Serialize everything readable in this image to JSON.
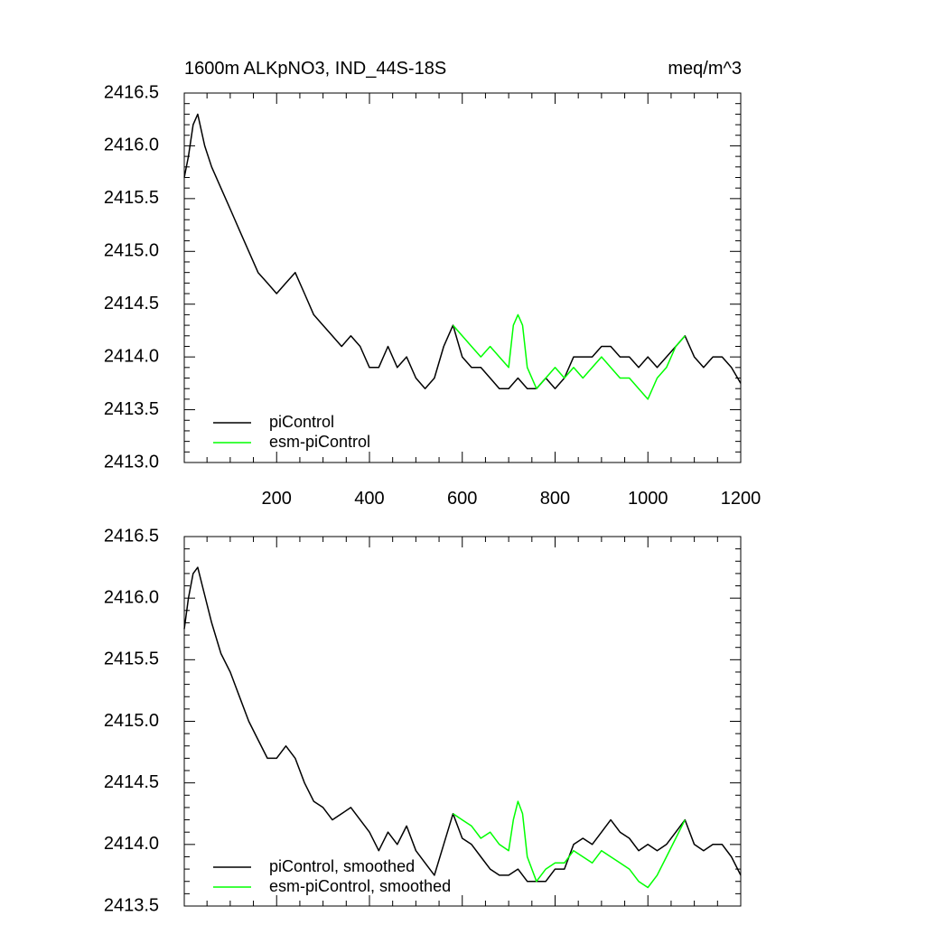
{
  "chart_data": [
    {
      "type": "line",
      "title": "1600m ALKpNO3, IND_44S-18S",
      "units": "meq/m^3",
      "xlim": [
        1,
        1200
      ],
      "ylim": [
        2413.0,
        2416.5
      ],
      "x_ticks": [
        200,
        400,
        600,
        800,
        1000,
        1200
      ],
      "x_tick_labels": [
        "200",
        "400",
        "600",
        "800",
        "1000",
        "1200"
      ],
      "y_ticks": [
        2413.0,
        2413.5,
        2414.0,
        2414.5,
        2415.0,
        2415.5,
        2416.0,
        2416.5
      ],
      "y_tick_labels": [
        "2413.0",
        "2413.5",
        "2414.0",
        "2414.5",
        "2415.0",
        "2415.5",
        "2416.0",
        "2416.5"
      ],
      "legend": "bottom-left",
      "series": [
        {
          "name": "piControl",
          "color": "#000000",
          "x": [
            1,
            10,
            20,
            30,
            45,
            60,
            80,
            100,
            120,
            140,
            160,
            180,
            200,
            220,
            240,
            260,
            280,
            300,
            320,
            340,
            360,
            380,
            400,
            420,
            440,
            460,
            480,
            500,
            520,
            540,
            560,
            580,
            600,
            620,
            640,
            660,
            680,
            700,
            720,
            740,
            760,
            780,
            800,
            820,
            840,
            860,
            880,
            900,
            920,
            940,
            960,
            980,
            1000,
            1020,
            1040,
            1060,
            1080,
            1100,
            1120,
            1140,
            1160,
            1180,
            1200
          ],
          "y": [
            2415.7,
            2415.9,
            2416.2,
            2416.3,
            2416.0,
            2415.8,
            2415.6,
            2415.4,
            2415.2,
            2415.0,
            2414.8,
            2414.7,
            2414.6,
            2414.7,
            2414.8,
            2414.6,
            2414.4,
            2414.3,
            2414.2,
            2414.1,
            2414.2,
            2414.1,
            2413.9,
            2413.9,
            2414.1,
            2413.9,
            2414.0,
            2413.8,
            2413.7,
            2413.8,
            2414.1,
            2414.3,
            2414.0,
            2413.9,
            2413.9,
            2413.8,
            2413.7,
            2413.7,
            2413.8,
            2413.7,
            2413.7,
            2413.8,
            2413.7,
            2413.8,
            2414.0,
            2414.0,
            2414.0,
            2414.1,
            2414.1,
            2414.0,
            2414.0,
            2413.9,
            2414.0,
            2413.9,
            2414.0,
            2414.1,
            2414.2,
            2414.0,
            2413.9,
            2414.0,
            2414.0,
            2413.9,
            2413.75
          ]
        },
        {
          "name": "esm-piControl",
          "color": "#00ff00",
          "x": [
            580,
            600,
            620,
            640,
            660,
            680,
            700,
            710,
            720,
            730,
            740,
            760,
            780,
            800,
            820,
            840,
            860,
            880,
            900,
            920,
            940,
            960,
            980,
            1000,
            1020,
            1040,
            1060,
            1080
          ],
          "y": [
            2414.3,
            2414.2,
            2414.1,
            2414.0,
            2414.1,
            2414.0,
            2413.9,
            2414.3,
            2414.4,
            2414.3,
            2413.9,
            2413.7,
            2413.8,
            2413.9,
            2413.8,
            2413.9,
            2413.8,
            2413.9,
            2414.0,
            2413.9,
            2413.8,
            2413.8,
            2413.7,
            2413.6,
            2413.8,
            2413.9,
            2414.1,
            2414.2
          ]
        }
      ]
    },
    {
      "type": "line",
      "xlim": [
        1,
        1200
      ],
      "ylim": [
        2413.5,
        2416.5
      ],
      "x_ticks": [
        200,
        400,
        600,
        800,
        1000,
        1200
      ],
      "y_ticks": [
        2413.5,
        2414.0,
        2414.5,
        2415.0,
        2415.5,
        2416.0,
        2416.5
      ],
      "y_tick_labels": [
        "2413.5",
        "2414.0",
        "2414.5",
        "2415.0",
        "2415.5",
        "2416.0",
        "2416.5"
      ],
      "legend": "bottom-left",
      "series": [
        {
          "name": "piControl, smoothed",
          "color": "#000000",
          "x": [
            1,
            10,
            20,
            30,
            40,
            60,
            80,
            100,
            120,
            140,
            160,
            180,
            200,
            220,
            240,
            260,
            280,
            300,
            320,
            340,
            360,
            380,
            400,
            420,
            440,
            460,
            480,
            500,
            520,
            540,
            560,
            580,
            600,
            620,
            640,
            660,
            680,
            700,
            720,
            740,
            760,
            780,
            800,
            820,
            840,
            860,
            880,
            900,
            920,
            940,
            960,
            980,
            1000,
            1020,
            1040,
            1060,
            1080,
            1100,
            1120,
            1140,
            1160,
            1180,
            1200
          ],
          "y": [
            2415.75,
            2416.0,
            2416.2,
            2416.25,
            2416.1,
            2415.8,
            2415.55,
            2415.4,
            2415.2,
            2415.0,
            2414.85,
            2414.7,
            2414.7,
            2414.8,
            2414.7,
            2414.5,
            2414.35,
            2414.3,
            2414.2,
            2414.25,
            2414.3,
            2414.2,
            2414.1,
            2413.95,
            2414.1,
            2414.0,
            2414.15,
            2413.95,
            2413.85,
            2413.75,
            2414.0,
            2414.25,
            2414.05,
            2414.0,
            2413.9,
            2413.8,
            2413.75,
            2413.75,
            2413.8,
            2413.7,
            2413.7,
            2413.7,
            2413.8,
            2413.8,
            2414.0,
            2414.05,
            2414.0,
            2414.1,
            2414.2,
            2414.1,
            2414.05,
            2413.95,
            2414.0,
            2413.95,
            2414.0,
            2414.1,
            2414.2,
            2414.0,
            2413.95,
            2414.0,
            2414.0,
            2413.9,
            2413.75
          ]
        },
        {
          "name": "esm-piControl, smoothed",
          "color": "#00ff00",
          "x": [
            580,
            600,
            620,
            640,
            660,
            680,
            700,
            710,
            720,
            730,
            740,
            760,
            780,
            800,
            820,
            840,
            860,
            880,
            900,
            920,
            940,
            960,
            980,
            1000,
            1020,
            1040,
            1060,
            1080
          ],
          "y": [
            2414.25,
            2414.2,
            2414.15,
            2414.05,
            2414.1,
            2414.0,
            2413.95,
            2414.2,
            2414.35,
            2414.25,
            2413.9,
            2413.7,
            2413.8,
            2413.85,
            2413.85,
            2413.95,
            2413.9,
            2413.85,
            2413.95,
            2413.9,
            2413.85,
            2413.8,
            2413.7,
            2413.65,
            2413.75,
            2413.9,
            2414.05,
            2414.2
          ]
        }
      ]
    }
  ]
}
